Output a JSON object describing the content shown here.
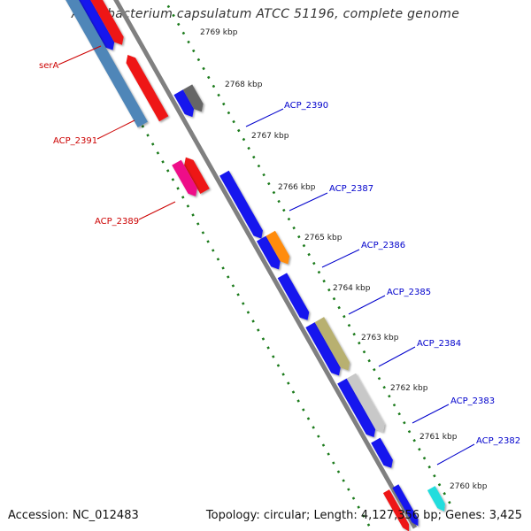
{
  "title": "Acidobacterium capsulatum ATCC 51196, complete genome",
  "footer": {
    "accession": "Accession: NC_012483",
    "summary": "Topology: circular; Length: 4,127,356 bp; Genes: 3,425"
  },
  "colors": {
    "backbone": "#808080",
    "tick_marks": "#1a7a1a",
    "label_red": "#cc0000",
    "label_blue": "#0000cc"
  },
  "kbp_ticks": [
    "2769 kbp",
    "2768 kbp",
    "2767 kbp",
    "2766 kbp",
    "2765 kbp",
    "2764 kbp",
    "2763 kbp",
    "2762 kbp",
    "2761 kbp",
    "2760 kbp"
  ],
  "gene_labels": [
    {
      "text": "serA",
      "color": "#cc0000"
    },
    {
      "text": "ACP_2391",
      "color": "#cc0000"
    },
    {
      "text": "ACP_2389",
      "color": "#cc0000"
    },
    {
      "text": "ACP_2390",
      "color": "#0000cc"
    },
    {
      "text": "ACP_2387",
      "color": "#0000cc"
    },
    {
      "text": "ACP_2386",
      "color": "#0000cc"
    },
    {
      "text": "ACP_2385",
      "color": "#0000cc"
    },
    {
      "text": "ACP_2384",
      "color": "#0000cc"
    },
    {
      "text": "ACP_2383",
      "color": "#0000cc"
    },
    {
      "text": "ACP_2382",
      "color": "#0000cc"
    }
  ]
}
